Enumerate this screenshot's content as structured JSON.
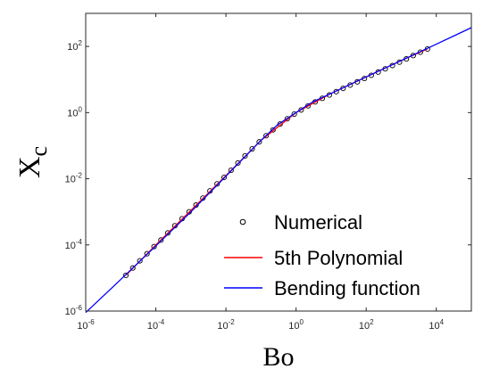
{
  "chart_data": {
    "type": "line",
    "xlabel": "Bo",
    "ylabel": {
      "main": "X",
      "sub": "c"
    },
    "xscale": "log",
    "yscale": "log",
    "xlim": [
      1e-06,
      100000.0
    ],
    "ylim": [
      1e-06,
      1000.0
    ],
    "xticks": [
      {
        "base": "10",
        "exp": "-6",
        "value": 1e-06
      },
      {
        "base": "10",
        "exp": "-4",
        "value": 0.0001
      },
      {
        "base": "10",
        "exp": "-2",
        "value": 0.01
      },
      {
        "base": "10",
        "exp": "0",
        "value": 1
      },
      {
        "base": "10",
        "exp": "2",
        "value": 100
      },
      {
        "base": "10",
        "exp": "4",
        "value": 10000
      }
    ],
    "yticks": [
      {
        "base": "10",
        "exp": "-6",
        "value": 1e-06
      },
      {
        "base": "10",
        "exp": "-4",
        "value": 0.0001
      },
      {
        "base": "10",
        "exp": "-2",
        "value": 0.01
      },
      {
        "base": "10",
        "exp": "0",
        "value": 1
      },
      {
        "base": "10",
        "exp": "2",
        "value": 100
      }
    ],
    "grid": false,
    "legend_position": "bottom-right",
    "series": [
      {
        "name": "Numerical",
        "kind": "markers",
        "marker": "circle",
        "color": "#000000",
        "x": [
          1.4e-05,
          2.2e-05,
          3.5e-05,
          5.6e-05,
          8.9e-05,
          0.00014,
          0.00022,
          0.00035,
          0.00056,
          0.00089,
          0.0014,
          0.0022,
          0.0035,
          0.0056,
          0.0089,
          0.014,
          0.022,
          0.035,
          0.056,
          0.089,
          0.14,
          0.22,
          0.35,
          0.56,
          0.89,
          1.4,
          2.2,
          3.5,
          5.6,
          8.9,
          14,
          22,
          35,
          56,
          89,
          140,
          220,
          350,
          560,
          890,
          1400,
          2200,
          3500,
          5600
        ],
        "y": [
          1.2e-05,
          2e-05,
          3.3e-05,
          5.4e-05,
          8.9e-05,
          0.00014,
          0.00023,
          0.00038,
          0.00062,
          0.001,
          0.0016,
          0.0026,
          0.0043,
          0.007,
          0.011,
          0.018,
          0.03,
          0.049,
          0.08,
          0.13,
          0.2,
          0.3,
          0.45,
          0.65,
          0.9,
          1.2,
          1.6,
          2.1,
          2.7,
          3.4,
          4.3,
          5.4,
          6.8,
          8.5,
          10.7,
          13.4,
          16.8,
          21,
          26.5,
          33.5,
          42,
          53,
          67,
          84
        ]
      },
      {
        "name": "5th Polynomial",
        "kind": "line",
        "color": "#ff0000",
        "x": [
          1.4e-05,
          0.0001,
          0.001,
          0.01,
          0.1,
          1,
          10,
          100,
          1000,
          5600
        ],
        "y": [
          1.2e-05,
          0.0001,
          0.0011,
          0.0125,
          0.145,
          1.0,
          3.8,
          12.0,
          37.5,
          84
        ]
      },
      {
        "name": "Bending function",
        "kind": "line",
        "color": "#0000ff",
        "x": [
          1e-06,
          1e-05,
          0.0001,
          0.001,
          0.01,
          0.1,
          0.3,
          1,
          3,
          10,
          100,
          1000,
          10000,
          100000.0
        ],
        "y": [
          9e-07,
          9e-06,
          9.3e-05,
          0.001,
          0.012,
          0.145,
          0.43,
          1.0,
          2.1,
          3.8,
          12.0,
          37.5,
          117,
          370
        ]
      }
    ]
  }
}
